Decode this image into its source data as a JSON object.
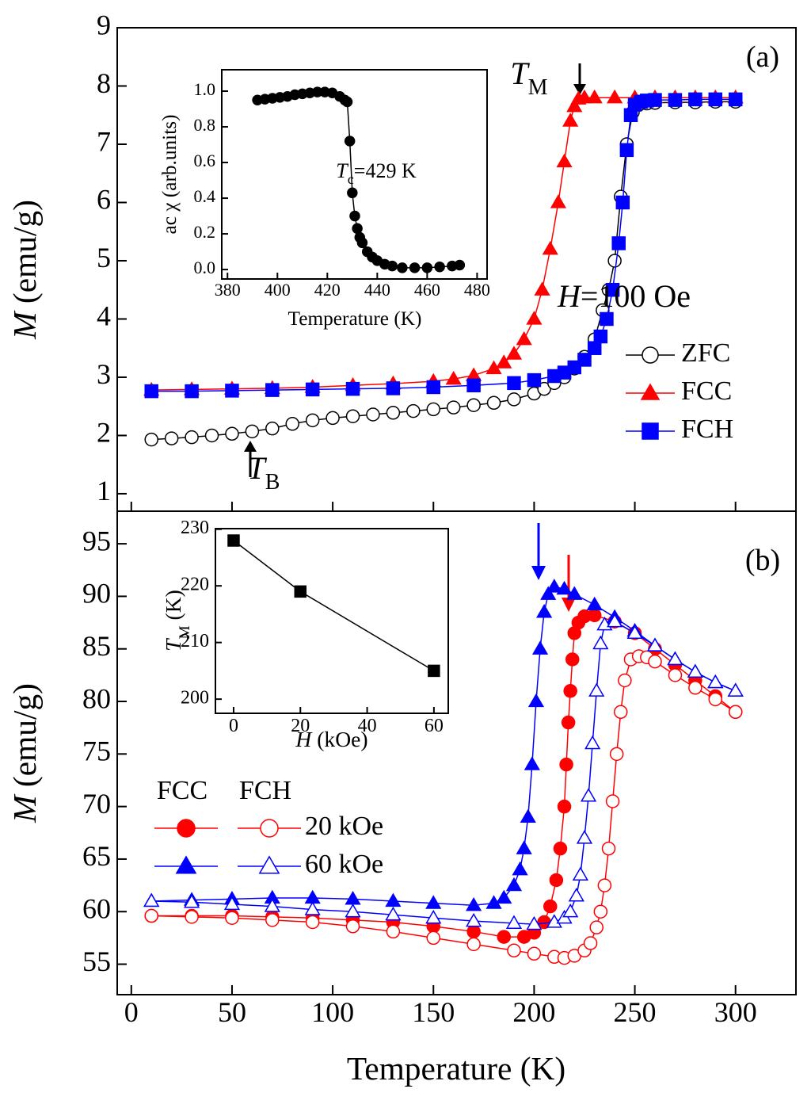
{
  "chart_data": [
    {
      "type": "line",
      "ylabel": [
        {
          "t": "M",
          "i": true
        },
        {
          "t": " (emu/g)"
        }
      ],
      "xlim": [
        -7,
        330
      ],
      "xticks": [
        0,
        50,
        100,
        150,
        200,
        250,
        300
      ],
      "ylim": [
        0.7,
        9
      ],
      "yticks": [
        1,
        2,
        3,
        4,
        5,
        6,
        7,
        8,
        9
      ],
      "legend": "right",
      "annotations": [
        [
          {
            "t": "(a)"
          }
        ],
        [
          {
            "t": "T",
            "i": true
          },
          {
            "t": "M",
            "sub": true
          }
        ],
        [
          {
            "t": "T",
            "i": true
          },
          {
            "t": "B",
            "sub": true
          }
        ],
        [
          {
            "t": "H",
            "i": true
          },
          {
            "t": "=100 Oe"
          }
        ]
      ],
      "series": [
        {
          "name": "ZFC",
          "color": "#000000",
          "marker": "circle",
          "filled": false,
          "x": [
            10,
            20,
            30,
            40,
            50,
            60,
            70,
            80,
            90,
            100,
            110,
            120,
            130,
            140,
            150,
            160,
            170,
            180,
            190,
            200,
            205,
            210,
            215,
            220,
            225,
            230,
            234,
            237,
            240,
            243,
            246,
            249,
            252,
            256,
            260,
            270,
            280,
            290,
            300
          ],
          "values": [
            1.93,
            1.95,
            1.97,
            2.0,
            2.03,
            2.07,
            2.12,
            2.2,
            2.26,
            2.3,
            2.33,
            2.36,
            2.39,
            2.42,
            2.45,
            2.48,
            2.52,
            2.56,
            2.62,
            2.72,
            2.8,
            2.9,
            3.0,
            3.15,
            3.35,
            3.65,
            4.15,
            4.5,
            5.0,
            6.1,
            7.0,
            7.55,
            7.68,
            7.7,
            7.71,
            7.72,
            7.72,
            7.73,
            7.73
          ]
        },
        {
          "name": "FCC",
          "color": "#ff0000",
          "marker": "triangle",
          "filled": true,
          "x": [
            10,
            30,
            50,
            70,
            90,
            110,
            130,
            150,
            160,
            170,
            180,
            185,
            190,
            195,
            200,
            204,
            208,
            212,
            215,
            218,
            220,
            222,
            225,
            230,
            240,
            250,
            260,
            270,
            280,
            290,
            300
          ],
          "values": [
            2.78,
            2.79,
            2.8,
            2.81,
            2.83,
            2.86,
            2.89,
            2.93,
            2.97,
            3.03,
            3.15,
            3.25,
            3.4,
            3.65,
            4.0,
            4.5,
            5.2,
            6.0,
            6.7,
            7.4,
            7.65,
            7.78,
            7.8,
            7.8,
            7.8,
            7.8,
            7.8,
            7.8,
            7.8,
            7.8,
            7.8
          ]
        },
        {
          "name": "FCH",
          "color": "#0000ff",
          "marker": "square",
          "filled": true,
          "x": [
            10,
            30,
            50,
            70,
            90,
            110,
            130,
            150,
            170,
            190,
            200,
            210,
            215,
            220,
            225,
            230,
            233,
            236,
            239,
            242,
            244,
            246,
            248,
            250,
            253,
            256,
            260,
            270,
            280,
            290,
            300
          ],
          "values": [
            2.76,
            2.76,
            2.77,
            2.78,
            2.79,
            2.8,
            2.81,
            2.83,
            2.86,
            2.9,
            2.95,
            3.02,
            3.08,
            3.17,
            3.3,
            3.5,
            3.7,
            4.0,
            4.5,
            5.3,
            6.0,
            6.9,
            7.5,
            7.68,
            7.73,
            7.75,
            7.76,
            7.76,
            7.77,
            7.77,
            7.77
          ]
        }
      ]
    },
    {
      "type": "line",
      "xlabel": [
        {
          "t": "Temperature (K)"
        }
      ],
      "ylabel": [
        {
          "t": "ac χ (arb.units)"
        }
      ],
      "xlim": [
        377.7,
        484
      ],
      "xticks": [
        380,
        400,
        420,
        440,
        460,
        480
      ],
      "ylim": [
        -0.053,
        1.12
      ],
      "yticks": [
        {
          "value": 0,
          "label": "0.0"
        },
        0.2,
        0.4,
        0.6,
        0.8,
        {
          "value": 1,
          "label": "1.0"
        }
      ],
      "annotations": [
        [
          {
            "t": "T",
            "i": true
          },
          {
            "t": "c",
            "sub": true
          },
          {
            "t": "=429 K"
          }
        ]
      ],
      "series": [
        {
          "color": "#000000",
          "marker": "circle",
          "filled": true,
          "x": [
            392,
            395,
            398,
            401,
            404,
            407,
            410,
            413,
            416,
            419,
            422,
            425,
            427,
            428,
            429,
            430,
            431,
            432,
            433,
            434,
            436,
            438,
            440,
            443,
            446,
            450,
            455,
            460,
            465,
            470,
            473
          ],
          "values": [
            0.95,
            0.955,
            0.96,
            0.965,
            0.97,
            0.98,
            0.985,
            0.99,
            0.995,
            0.995,
            0.99,
            0.97,
            0.95,
            0.94,
            0.72,
            0.43,
            0.3,
            0.23,
            0.18,
            0.15,
            0.1,
            0.07,
            0.05,
            0.03,
            0.02,
            0.01,
            0.01,
            0.01,
            0.015,
            0.02,
            0.025
          ]
        }
      ]
    },
    {
      "type": "line",
      "xlabel": [
        {
          "t": "Temperature (K)"
        }
      ],
      "ylabel": [
        {
          "t": "M",
          "i": true
        },
        {
          "t": " (emu/g)"
        }
      ],
      "xlim": [
        -7,
        330
      ],
      "xticks": [
        0,
        50,
        100,
        150,
        200,
        250,
        300
      ],
      "ylim": [
        52.1,
        98.1
      ],
      "yticks": [
        55,
        60,
        65,
        70,
        75,
        80,
        85,
        90,
        95
      ],
      "legend_columns": [
        "FCC",
        "FCH"
      ],
      "legend_rows": [
        "20 kOe",
        "60 kOe"
      ],
      "annotations": [
        [
          {
            "t": "(b)"
          }
        ]
      ],
      "series": [
        {
          "color": "#ff0000",
          "marker": "circle",
          "filled": true,
          "x": [
            10,
            30,
            50,
            70,
            90,
            110,
            130,
            150,
            170,
            185,
            195,
            200,
            205,
            208,
            211,
            213,
            215,
            216,
            217,
            218,
            219,
            220,
            222,
            225,
            230,
            240,
            250,
            260,
            270,
            280,
            290,
            300
          ],
          "values": [
            59.6,
            59.6,
            59.6,
            59.5,
            59.4,
            59.2,
            59.0,
            58.6,
            58.1,
            57.6,
            57.6,
            58.0,
            59.0,
            60.5,
            63,
            66,
            70,
            74,
            78,
            81,
            84,
            86.5,
            87.5,
            88.1,
            88.2,
            87.6,
            86.5,
            85,
            83.5,
            82,
            80.5,
            79
          ]
        },
        {
          "color": "#ff0000",
          "marker": "circle",
          "filled": false,
          "x": [
            10,
            30,
            50,
            70,
            90,
            110,
            130,
            150,
            170,
            190,
            200,
            210,
            215,
            220,
            225,
            228,
            231,
            233,
            235,
            237,
            239,
            241,
            243,
            245,
            248,
            252,
            256,
            260,
            270,
            280,
            290,
            300
          ],
          "values": [
            59.6,
            59.5,
            59.4,
            59.2,
            59.0,
            58.6,
            58.1,
            57.5,
            56.9,
            56.3,
            56.0,
            55.7,
            55.6,
            55.8,
            56.3,
            57.0,
            58.5,
            60,
            62.5,
            66,
            70.5,
            75,
            79,
            82,
            84,
            84.3,
            84.2,
            83.8,
            82.5,
            81.3,
            80.2,
            79
          ]
        },
        {
          "color": "#0000ff",
          "marker": "triangle",
          "filled": true,
          "x": [
            10,
            30,
            50,
            70,
            90,
            110,
            130,
            150,
            170,
            180,
            185,
            190,
            193,
            195,
            197,
            199,
            201,
            203,
            205,
            207,
            210,
            215,
            220,
            230,
            240,
            250,
            260,
            270,
            280,
            290,
            300
          ],
          "values": [
            61,
            61.1,
            61.2,
            61.3,
            61.3,
            61.2,
            61.0,
            60.8,
            60.6,
            60.8,
            61.3,
            62.5,
            64,
            66,
            69,
            74,
            80,
            85,
            88.5,
            90.2,
            90.9,
            90.7,
            90.2,
            89.2,
            88,
            86.7,
            85.3,
            84,
            82.8,
            81.8,
            81
          ]
        },
        {
          "color": "#0000ff",
          "marker": "triangle",
          "filled": false,
          "x": [
            10,
            30,
            50,
            70,
            90,
            110,
            130,
            150,
            170,
            190,
            200,
            210,
            215,
            218,
            221,
            223,
            225,
            227,
            229,
            231,
            233,
            235,
            240,
            250,
            260,
            270,
            280,
            290,
            300
          ],
          "values": [
            61,
            60.9,
            60.7,
            60.5,
            60.2,
            60,
            59.7,
            59.4,
            59.1,
            58.9,
            58.8,
            59,
            59.4,
            60,
            61.5,
            63.5,
            67,
            71,
            76,
            81,
            85.5,
            87.3,
            87.6,
            86.5,
            85.3,
            84,
            82.8,
            81.8,
            81
          ]
        }
      ]
    },
    {
      "type": "line",
      "xlabel": [
        {
          "t": "H",
          "i": true
        },
        {
          "t": " (kOe)"
        }
      ],
      "ylabel": [
        {
          "t": "T",
          "i": true
        },
        {
          "t": "M",
          "sub": true
        },
        {
          "t": " (K)"
        }
      ],
      "xlim": [
        -5.45,
        64.3
      ],
      "xticks": [
        0,
        20,
        40,
        60
      ],
      "ylim": [
        197.5,
        230.1
      ],
      "yticks": [
        200,
        210,
        220,
        230
      ],
      "series": [
        {
          "color": "#000000",
          "marker": "square",
          "filled": true,
          "x": [
            0,
            20,
            60
          ],
          "values": [
            228,
            219,
            205
          ]
        }
      ]
    }
  ]
}
